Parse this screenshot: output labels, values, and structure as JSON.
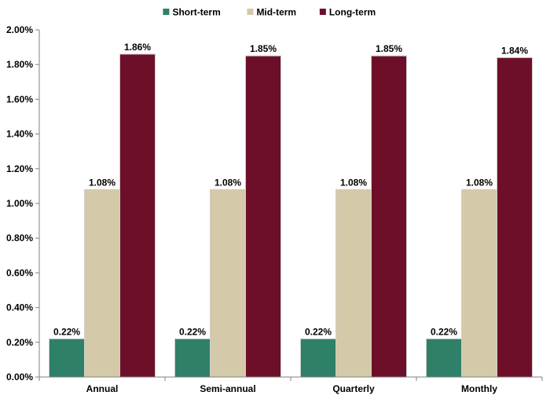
{
  "chart_data": {
    "type": "bar",
    "categories": [
      "Annual",
      "Semi-annual",
      "Quarterly",
      "Monthly"
    ],
    "series": [
      {
        "name": "Short-term",
        "color": "#2e8068",
        "values": [
          0.22,
          0.22,
          0.22,
          0.22
        ],
        "labels": [
          "0.22%",
          "0.22%",
          "0.22%",
          "0.22%"
        ]
      },
      {
        "name": "Mid-term",
        "color": "#d4c9a8",
        "values": [
          1.08,
          1.08,
          1.08,
          1.08
        ],
        "labels": [
          "1.08%",
          "1.08%",
          "1.08%",
          "1.08%"
        ]
      },
      {
        "name": "Long-term",
        "color": "#6e0f2a",
        "values": [
          1.86,
          1.85,
          1.85,
          1.84
        ],
        "labels": [
          "1.86%",
          "1.85%",
          "1.85%",
          "1.84%"
        ]
      }
    ],
    "ylim": [
      0,
      2.0
    ],
    "yticks": [
      0,
      0.2,
      0.4,
      0.6,
      0.8,
      1.0,
      1.2,
      1.4,
      1.6,
      1.8,
      2.0
    ],
    "ytick_labels": [
      "0.00%",
      "0.20%",
      "0.40%",
      "0.60%",
      "0.80%",
      "1.00%",
      "1.20%",
      "1.40%",
      "1.60%",
      "1.80%",
      "2.00%"
    ],
    "title": "",
    "xlabel": "",
    "ylabel": "",
    "grid": false,
    "legend_position": "top-center"
  }
}
